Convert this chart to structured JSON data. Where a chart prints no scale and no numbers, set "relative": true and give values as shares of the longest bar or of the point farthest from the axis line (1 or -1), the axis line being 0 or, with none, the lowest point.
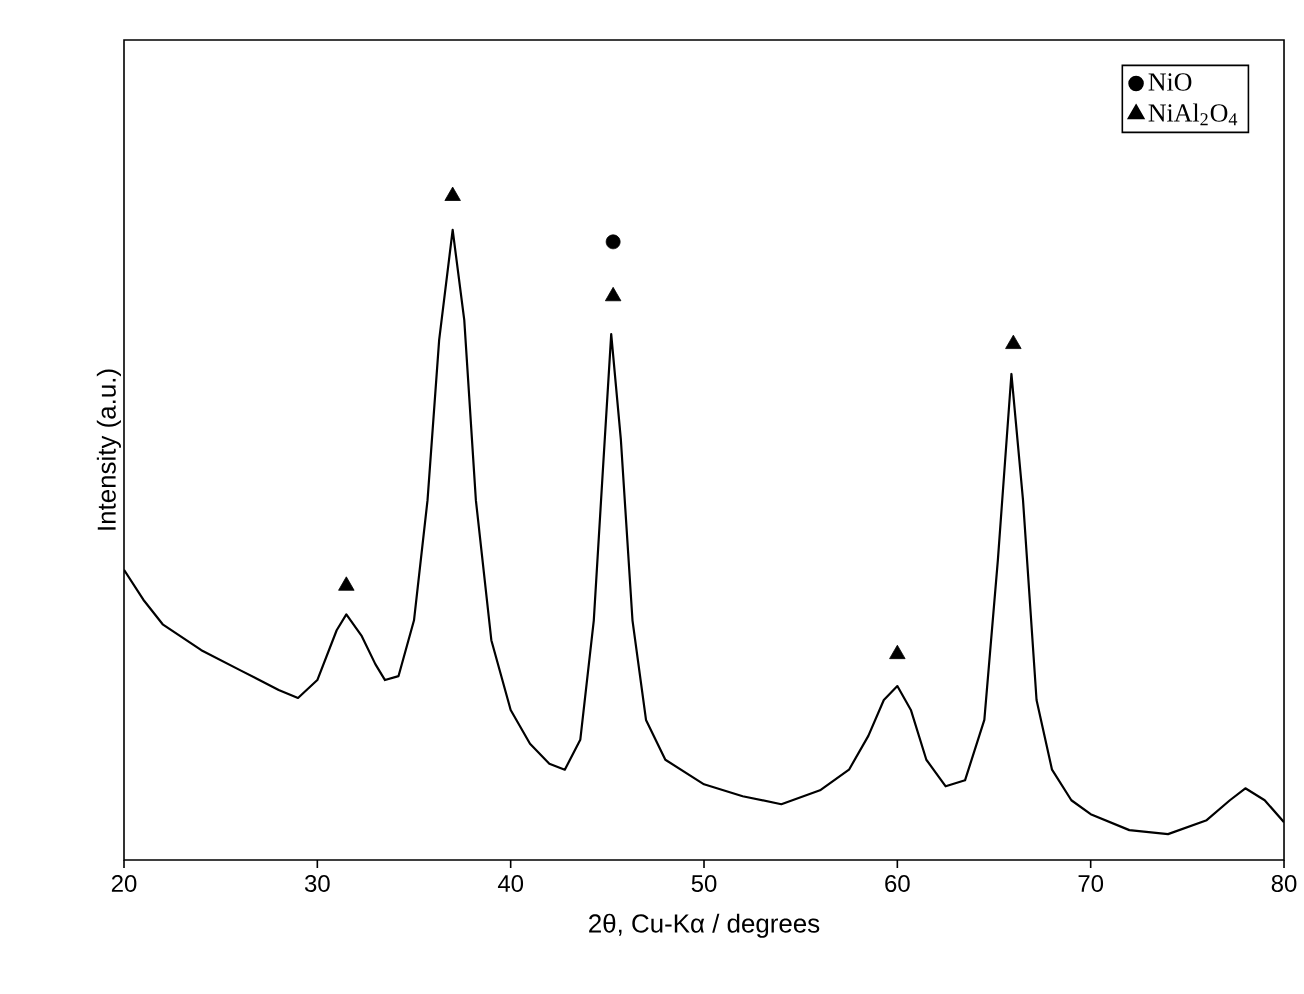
{
  "chart_data": {
    "type": "line",
    "relative": true,
    "xlabel": "2θ, Cu-Kα / degrees",
    "ylabel": "Intensity (a.u.)",
    "xlim": [
      20,
      80
    ],
    "xticks": [
      20,
      30,
      40,
      50,
      60,
      70,
      80
    ],
    "legend": "top right",
    "tick_labels": "x",
    "series": [
      {
        "color": "#000000",
        "marker": "none",
        "x": [
          20,
          21,
          22,
          24,
          26,
          28,
          29,
          30,
          31,
          31.5,
          32.3,
          33,
          33.5,
          34.2,
          35,
          35.7,
          36.3,
          37,
          37.6,
          38.2,
          39,
          40,
          41,
          42,
          42.8,
          43.6,
          44.3,
          44.8,
          45.2,
          45.7,
          46.3,
          47,
          48,
          50,
          52,
          54,
          56,
          57.5,
          58.5,
          59.3,
          60,
          60.7,
          61.5,
          62.5,
          63.5,
          64.5,
          65.2,
          65.9,
          66.5,
          67.2,
          68,
          69,
          70,
          72,
          74,
          76,
          77.2,
          78,
          79,
          80
        ],
        "values": [
          0.437,
          0.392,
          0.355,
          0.316,
          0.286,
          0.256,
          0.244,
          0.271,
          0.346,
          0.37,
          0.337,
          0.295,
          0.271,
          0.277,
          0.361,
          0.542,
          0.783,
          0.949,
          0.813,
          0.542,
          0.331,
          0.226,
          0.175,
          0.145,
          0.136,
          0.181,
          0.361,
          0.602,
          0.792,
          0.633,
          0.361,
          0.211,
          0.151,
          0.114,
          0.096,
          0.084,
          0.105,
          0.136,
          0.187,
          0.241,
          0.262,
          0.226,
          0.151,
          0.111,
          0.12,
          0.211,
          0.452,
          0.732,
          0.542,
          0.241,
          0.136,
          0.09,
          0.069,
          0.045,
          0.039,
          0.06,
          0.09,
          0.108,
          0.09,
          0.057
        ]
      },
      {
        "type": "scatter",
        "name": "NiO",
        "color": "#000000",
        "marker": "circle",
        "x": [
          45.3
        ],
        "values": [
          0.931
        ]
      },
      {
        "type": "scatter",
        "name": "NiAl$_{2}$O$_{4}$",
        "color": "#000000",
        "marker": "triangle",
        "x": [
          31.5,
          37,
          45.3,
          60,
          66
        ],
        "values": [
          0.413,
          1.0,
          0.849,
          0.31,
          0.777
        ]
      }
    ]
  }
}
